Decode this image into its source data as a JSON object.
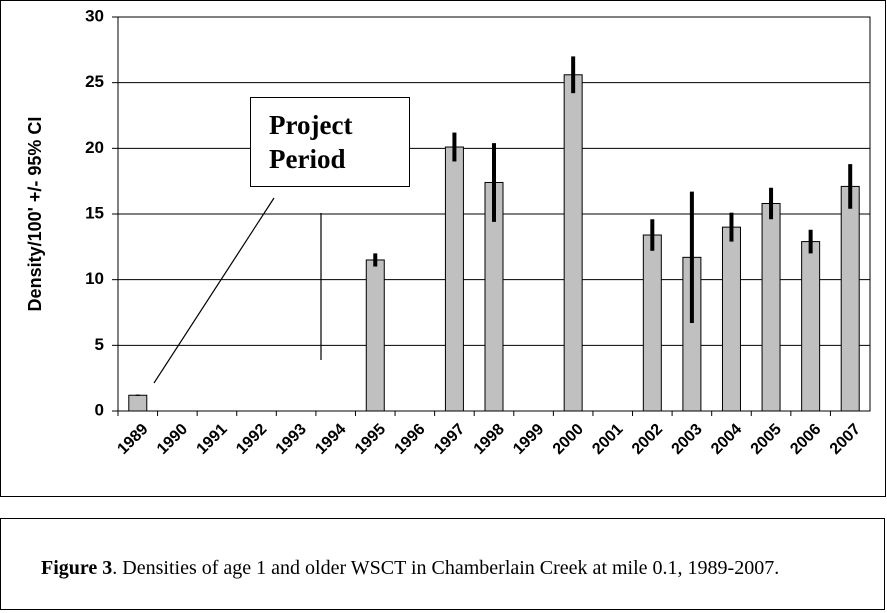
{
  "chart_data": {
    "type": "bar",
    "y_label": "Density/100' +/- 95% CI",
    "categories": [
      "1989",
      "1990",
      "1991",
      "1992",
      "1993",
      "1994",
      "1995",
      "1996",
      "1997",
      "1998",
      "1999",
      "2000",
      "2001",
      "2002",
      "2003",
      "2004",
      "2005",
      "2006",
      "2007"
    ],
    "values": [
      1.2,
      null,
      null,
      null,
      null,
      null,
      11.5,
      null,
      20.1,
      17.4,
      null,
      25.6,
      null,
      13.4,
      11.7,
      14.0,
      15.8,
      12.9,
      17.1
    ],
    "errors": [
      0.05,
      null,
      null,
      null,
      null,
      null,
      0.5,
      null,
      1.1,
      3.0,
      null,
      1.4,
      null,
      1.2,
      5.0,
      1.1,
      1.2,
      0.9,
      1.7
    ],
    "color": "#c0c0c0",
    "ylim": [
      0,
      30
    ],
    "yticks": [
      0,
      5,
      10,
      15,
      20,
      25,
      30
    ],
    "grid": true,
    "annotation": "Project Period"
  },
  "caption": {
    "label": "Figure 3",
    "text": ".  Densities of age 1 and older WSCT in Chamberlain Creek at mile 0.1, 1989-2007."
  }
}
